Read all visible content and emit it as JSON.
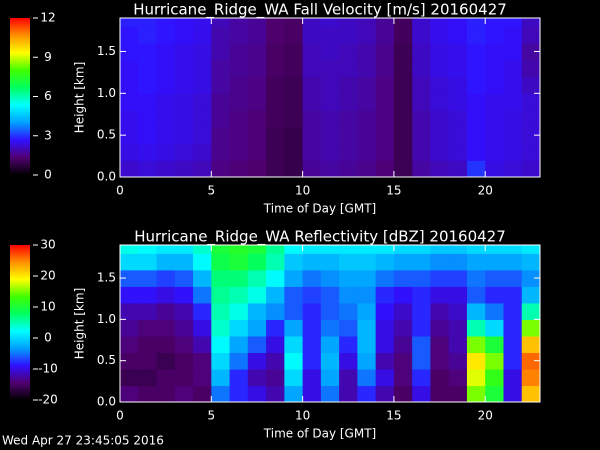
{
  "chart_data": [
    {
      "type": "heatmap",
      "title": "Hurricane_Ridge_WA Fall Velocity [m/s] 20160427",
      "x_label": "Time of Day [GMT]",
      "y_label": "Height [km]",
      "xlim": [
        0,
        23
      ],
      "xticks": [
        0,
        5,
        10,
        15,
        20
      ],
      "ylim": [
        0,
        1.9
      ],
      "yticks": [
        {
          "value": 0,
          "label": "0.0"
        },
        0.5,
        {
          "value": 1,
          "label": "1.0"
        },
        1.5
      ],
      "zlim": [
        0,
        12
      ],
      "zticks": [
        0,
        3,
        6,
        9,
        12
      ],
      "colorscale": [
        "#000000",
        "#500070",
        "#3010ff",
        "#00a0ff",
        "#00ffff",
        "#00ff60",
        "#40ff00",
        "#ffff00",
        "#ff9000",
        "#ff0000"
      ],
      "x": [
        0.5,
        1.5,
        2.5,
        3.5,
        4.5,
        5.5,
        6.5,
        7.5,
        8.5,
        9.5,
        10.5,
        11.5,
        12.5,
        13.5,
        14.5,
        15.5,
        16.5,
        17.5,
        18.5,
        19.5,
        20.5,
        21.5,
        22.5
      ],
      "y": [
        0.1,
        0.3,
        0.5,
        0.7,
        0.9,
        1.1,
        1.3,
        1.5,
        1.7,
        1.9
      ],
      "z": [
        [
          2.2,
          2.3,
          2.2,
          2.1,
          2.0,
          1.5,
          1.4,
          1.3,
          1.0,
          0.9,
          1.7,
          1.8,
          1.7,
          1.6,
          1.4,
          1.0,
          1.8,
          2.0,
          2.1,
          3.0,
          2.4,
          2.3,
          2.2
        ],
        [
          2.4,
          2.5,
          2.4,
          2.3,
          2.2,
          1.6,
          1.5,
          1.4,
          1.0,
          0.9,
          1.8,
          1.9,
          1.8,
          1.7,
          1.5,
          1.0,
          1.9,
          2.2,
          2.3,
          2.6,
          2.5,
          2.4,
          2.3
        ],
        [
          2.5,
          2.6,
          2.5,
          2.4,
          2.3,
          1.6,
          1.5,
          1.4,
          1.0,
          0.9,
          1.8,
          1.9,
          1.8,
          1.7,
          1.5,
          1.0,
          1.9,
          2.2,
          2.3,
          2.6,
          2.5,
          2.4,
          2.3
        ],
        [
          2.5,
          2.6,
          2.5,
          2.4,
          2.3,
          1.7,
          1.5,
          1.4,
          1.1,
          1.0,
          1.8,
          1.9,
          1.8,
          1.7,
          1.5,
          1.0,
          1.9,
          2.2,
          2.3,
          2.6,
          2.5,
          2.4,
          2.3
        ],
        [
          2.6,
          2.6,
          2.5,
          2.4,
          2.3,
          1.7,
          1.6,
          1.5,
          1.1,
          1.0,
          1.9,
          2.0,
          1.9,
          1.8,
          1.5,
          1.0,
          2.0,
          2.3,
          2.4,
          2.6,
          2.5,
          2.5,
          2.3
        ],
        [
          2.6,
          2.7,
          2.6,
          2.5,
          2.4,
          1.8,
          1.6,
          1.5,
          1.1,
          1.0,
          1.9,
          2.0,
          1.9,
          1.8,
          1.5,
          1.0,
          2.0,
          2.3,
          2.4,
          2.7,
          2.6,
          2.5,
          2.1
        ],
        [
          2.6,
          2.7,
          2.6,
          2.5,
          2.4,
          1.8,
          1.7,
          1.6,
          1.2,
          1.1,
          2.0,
          2.0,
          2.0,
          1.9,
          1.6,
          1.0,
          2.1,
          2.4,
          2.5,
          2.7,
          2.6,
          2.5,
          1.9
        ],
        [
          2.7,
          2.7,
          2.6,
          2.5,
          2.4,
          1.9,
          1.7,
          1.6,
          1.2,
          1.1,
          2.0,
          2.1,
          2.0,
          1.9,
          1.6,
          1.0,
          2.1,
          2.4,
          2.5,
          2.7,
          2.6,
          2.6,
          1.8
        ],
        [
          2.7,
          2.8,
          2.7,
          2.6,
          2.5,
          1.9,
          1.8,
          1.7,
          1.3,
          1.2,
          2.1,
          2.1,
          2.1,
          2.0,
          1.7,
          1.1,
          2.2,
          2.5,
          2.6,
          2.8,
          2.7,
          2.6,
          2.0
        ],
        [
          2.8,
          2.8,
          2.7,
          2.6,
          2.5,
          2.0,
          1.8,
          1.7,
          1.3,
          1.2,
          2.1,
          2.2,
          2.1,
          2.0,
          1.7,
          1.1,
          2.2,
          2.5,
          2.6,
          2.8,
          2.7,
          2.7,
          2.1
        ]
      ]
    },
    {
      "type": "heatmap",
      "title": "Hurricane_Ridge_WA Reflectivity [dBZ] 20160427",
      "x_label": "Time of Day [GMT]",
      "y_label": "Height [km]",
      "xlim": [
        0,
        23
      ],
      "xticks": [
        0,
        5,
        10,
        15,
        20
      ],
      "ylim": [
        0,
        1.9
      ],
      "yticks": [
        {
          "value": 0,
          "label": "0.0"
        },
        0.5,
        {
          "value": 1,
          "label": "1.0"
        },
        1.5
      ],
      "zlim": [
        -20,
        30
      ],
      "zticks": [
        -20,
        -10,
        0,
        10,
        20,
        30
      ],
      "colorscale": [
        "#000000",
        "#500070",
        "#3010ff",
        "#00a0ff",
        "#00ffff",
        "#00ff60",
        "#40ff00",
        "#ffff00",
        "#ff9000",
        "#ff0000"
      ],
      "x": [
        0.5,
        1.5,
        2.5,
        3.5,
        4.5,
        5.5,
        6.5,
        7.5,
        8.5,
        9.5,
        10.5,
        11.5,
        12.5,
        13.5,
        14.5,
        15.5,
        16.5,
        17.5,
        18.5,
        19.5,
        20.5,
        21.5,
        22.5
      ],
      "y": [
        0.1,
        0.3,
        0.5,
        0.7,
        0.9,
        1.1,
        1.3,
        1.5,
        1.7,
        1.9
      ],
      "z": [
        [
          -14,
          -15,
          -15,
          -14,
          -15,
          -5,
          -8,
          -10,
          -12,
          -3,
          -10,
          -5,
          -12,
          -8,
          -12,
          -15,
          -10,
          -15,
          -15,
          15,
          10,
          -10,
          22
        ],
        [
          -16,
          -16,
          -15,
          -15,
          -14,
          -2,
          -8,
          -12,
          -13,
          0,
          -10,
          -3,
          -12,
          -5,
          -10,
          -14,
          -8,
          -15,
          -14,
          18,
          12,
          -10,
          25
        ],
        [
          -15,
          -15,
          -16,
          -15,
          -14,
          0,
          -5,
          -10,
          -12,
          2,
          -8,
          -2,
          -10,
          -3,
          -12,
          -14,
          -6,
          -14,
          -13,
          20,
          15,
          -8,
          26
        ],
        [
          -14,
          -15,
          -15,
          -14,
          -12,
          2,
          -3,
          -6,
          -10,
          0,
          -8,
          -3,
          -8,
          -2,
          -10,
          -13,
          -6,
          -14,
          -12,
          15,
          10,
          -8,
          22
        ],
        [
          -13,
          -14,
          -14,
          -13,
          -10,
          4,
          0,
          -3,
          -8,
          -3,
          -8,
          -5,
          -6,
          -2,
          -10,
          -12,
          -8,
          -13,
          -12,
          5,
          0,
          -8,
          15
        ],
        [
          -12,
          -12,
          -13,
          -12,
          -8,
          5,
          3,
          -2,
          -4,
          -6,
          -8,
          -6,
          -5,
          -3,
          -9,
          -11,
          -8,
          -12,
          -11,
          -2,
          -5,
          -8,
          5
        ],
        [
          -9,
          -9,
          -10,
          -9,
          -5,
          6,
          5,
          3,
          -2,
          -6,
          -7,
          -6,
          -4,
          -4,
          -8,
          -9,
          -8,
          -10,
          -10,
          -6,
          -8,
          -8,
          -2
        ],
        [
          -6,
          -6,
          -7,
          -6,
          -2,
          7,
          7,
          5,
          2,
          -3,
          -5,
          -4,
          -3,
          -3,
          -5,
          -6,
          -6,
          -7,
          -7,
          -5,
          -6,
          -6,
          -4
        ],
        [
          0,
          0,
          -2,
          -2,
          2,
          9,
          10,
          8,
          5,
          -1,
          -2,
          -2,
          -1,
          -1,
          -2,
          -3,
          -3,
          -4,
          -4,
          -3,
          -3,
          -3,
          -2
        ],
        [
          3,
          2,
          1,
          1,
          4,
          10,
          11,
          10,
          6,
          2,
          1,
          1,
          1,
          1,
          1,
          0,
          0,
          -1,
          -1,
          0,
          0,
          0,
          1
        ]
      ]
    }
  ],
  "footer": "Wed Apr 27 23:45:05 2016"
}
